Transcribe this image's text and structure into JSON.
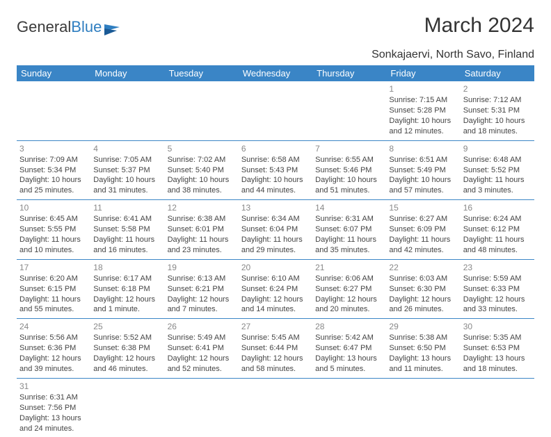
{
  "logo": {
    "text1": "General",
    "text2": "Blue"
  },
  "title": "March 2024",
  "location": "Sonkajaervi, North Savo, Finland",
  "colors": {
    "accent": "#3a85c6",
    "text": "#333333",
    "daynum": "#888888"
  },
  "weekdays": [
    "Sunday",
    "Monday",
    "Tuesday",
    "Wednesday",
    "Thursday",
    "Friday",
    "Saturday"
  ],
  "weeks": [
    [
      null,
      null,
      null,
      null,
      null,
      {
        "n": "1",
        "sr": "7:15 AM",
        "ss": "5:28 PM",
        "dl": "10 hours and 12 minutes."
      },
      {
        "n": "2",
        "sr": "7:12 AM",
        "ss": "5:31 PM",
        "dl": "10 hours and 18 minutes."
      }
    ],
    [
      {
        "n": "3",
        "sr": "7:09 AM",
        "ss": "5:34 PM",
        "dl": "10 hours and 25 minutes."
      },
      {
        "n": "4",
        "sr": "7:05 AM",
        "ss": "5:37 PM",
        "dl": "10 hours and 31 minutes."
      },
      {
        "n": "5",
        "sr": "7:02 AM",
        "ss": "5:40 PM",
        "dl": "10 hours and 38 minutes."
      },
      {
        "n": "6",
        "sr": "6:58 AM",
        "ss": "5:43 PM",
        "dl": "10 hours and 44 minutes."
      },
      {
        "n": "7",
        "sr": "6:55 AM",
        "ss": "5:46 PM",
        "dl": "10 hours and 51 minutes."
      },
      {
        "n": "8",
        "sr": "6:51 AM",
        "ss": "5:49 PM",
        "dl": "10 hours and 57 minutes."
      },
      {
        "n": "9",
        "sr": "6:48 AM",
        "ss": "5:52 PM",
        "dl": "11 hours and 3 minutes."
      }
    ],
    [
      {
        "n": "10",
        "sr": "6:45 AM",
        "ss": "5:55 PM",
        "dl": "11 hours and 10 minutes."
      },
      {
        "n": "11",
        "sr": "6:41 AM",
        "ss": "5:58 PM",
        "dl": "11 hours and 16 minutes."
      },
      {
        "n": "12",
        "sr": "6:38 AM",
        "ss": "6:01 PM",
        "dl": "11 hours and 23 minutes."
      },
      {
        "n": "13",
        "sr": "6:34 AM",
        "ss": "6:04 PM",
        "dl": "11 hours and 29 minutes."
      },
      {
        "n": "14",
        "sr": "6:31 AM",
        "ss": "6:07 PM",
        "dl": "11 hours and 35 minutes."
      },
      {
        "n": "15",
        "sr": "6:27 AM",
        "ss": "6:09 PM",
        "dl": "11 hours and 42 minutes."
      },
      {
        "n": "16",
        "sr": "6:24 AM",
        "ss": "6:12 PM",
        "dl": "11 hours and 48 minutes."
      }
    ],
    [
      {
        "n": "17",
        "sr": "6:20 AM",
        "ss": "6:15 PM",
        "dl": "11 hours and 55 minutes."
      },
      {
        "n": "18",
        "sr": "6:17 AM",
        "ss": "6:18 PM",
        "dl": "12 hours and 1 minute."
      },
      {
        "n": "19",
        "sr": "6:13 AM",
        "ss": "6:21 PM",
        "dl": "12 hours and 7 minutes."
      },
      {
        "n": "20",
        "sr": "6:10 AM",
        "ss": "6:24 PM",
        "dl": "12 hours and 14 minutes."
      },
      {
        "n": "21",
        "sr": "6:06 AM",
        "ss": "6:27 PM",
        "dl": "12 hours and 20 minutes."
      },
      {
        "n": "22",
        "sr": "6:03 AM",
        "ss": "6:30 PM",
        "dl": "12 hours and 26 minutes."
      },
      {
        "n": "23",
        "sr": "5:59 AM",
        "ss": "6:33 PM",
        "dl": "12 hours and 33 minutes."
      }
    ],
    [
      {
        "n": "24",
        "sr": "5:56 AM",
        "ss": "6:36 PM",
        "dl": "12 hours and 39 minutes."
      },
      {
        "n": "25",
        "sr": "5:52 AM",
        "ss": "6:38 PM",
        "dl": "12 hours and 46 minutes."
      },
      {
        "n": "26",
        "sr": "5:49 AM",
        "ss": "6:41 PM",
        "dl": "12 hours and 52 minutes."
      },
      {
        "n": "27",
        "sr": "5:45 AM",
        "ss": "6:44 PM",
        "dl": "12 hours and 58 minutes."
      },
      {
        "n": "28",
        "sr": "5:42 AM",
        "ss": "6:47 PM",
        "dl": "13 hours and 5 minutes."
      },
      {
        "n": "29",
        "sr": "5:38 AM",
        "ss": "6:50 PM",
        "dl": "13 hours and 11 minutes."
      },
      {
        "n": "30",
        "sr": "5:35 AM",
        "ss": "6:53 PM",
        "dl": "13 hours and 18 minutes."
      }
    ],
    [
      {
        "n": "31",
        "sr": "6:31 AM",
        "ss": "7:56 PM",
        "dl": "13 hours and 24 minutes."
      },
      null,
      null,
      null,
      null,
      null,
      null
    ]
  ],
  "labels": {
    "sunrise": "Sunrise:",
    "sunset": "Sunset:",
    "daylight": "Daylight:"
  }
}
